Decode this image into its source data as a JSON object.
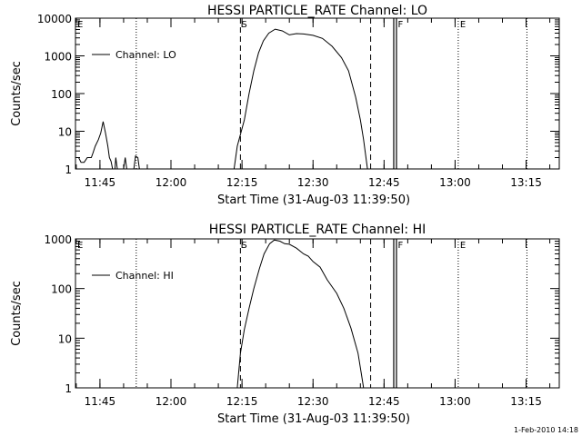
{
  "footer_timestamp": "1-Feb-2010 14:18",
  "chart_data": [
    {
      "type": "line",
      "title": "HESSI PARTICLE_RATE Channel: LO",
      "ylabel": "Counts/sec",
      "xlabel": "Start Time (31-Aug-03 11:39:50)",
      "yscale": "log",
      "ylim": [
        1,
        10000
      ],
      "yticks": [
        "1",
        "10",
        "100",
        "1000",
        "10000"
      ],
      "xlim": [
        "11:39:50",
        "13:22:00"
      ],
      "xticks": [
        "11:45",
        "12:00",
        "12:15",
        "12:30",
        "12:45",
        "13:00",
        "13:15"
      ],
      "legend": {
        "position": "top-left",
        "entries": [
          "Channel: LO"
        ]
      },
      "series": [
        {
          "name": "Channel: LO",
          "points": [
            [
              "11:39:50",
              2
            ],
            [
              "11:40:30",
              2
            ],
            [
              "11:41:00",
              1.5
            ],
            [
              "11:41:40",
              1.5
            ],
            [
              "11:42:20",
              2
            ],
            [
              "11:43:10",
              2
            ],
            [
              "11:43:30",
              2.6
            ],
            [
              "11:44:00",
              4
            ],
            [
              "11:44:40",
              6
            ],
            [
              "11:45:10",
              9
            ],
            [
              "11:45:40",
              18
            ],
            [
              "11:46:10",
              9
            ],
            [
              "11:46:40",
              4
            ],
            [
              "11:47:00",
              2
            ],
            [
              "11:47:20",
              1.6
            ],
            [
              "11:47:40",
              1
            ],
            [
              "11:48:10",
              1
            ],
            [
              "11:48:20",
              2
            ],
            [
              "11:48:40",
              1
            ],
            [
              "11:50:00",
              1
            ],
            [
              "11:50:20",
              2
            ],
            [
              "11:50:40",
              1
            ],
            [
              "11:52:10",
              1
            ],
            [
              "11:52:30",
              2.2
            ],
            [
              "11:53:00",
              2
            ],
            [
              "11:53:20",
              1
            ]
          ]
        },
        {
          "name": "Channel: LO",
          "points": [
            [
              "12:13:20",
              1
            ],
            [
              "12:14:00",
              4
            ],
            [
              "12:15:30",
              20
            ],
            [
              "12:16:30",
              100
            ],
            [
              "12:17:30",
              400
            ],
            [
              "12:18:30",
              1200
            ],
            [
              "12:19:30",
              2500
            ],
            [
              "12:20:40",
              4000
            ],
            [
              "12:22:00",
              5100
            ],
            [
              "12:23:30",
              4600
            ],
            [
              "12:25:00",
              3600
            ],
            [
              "12:26:30",
              3900
            ],
            [
              "12:28:00",
              3800
            ],
            [
              "12:30:00",
              3500
            ],
            [
              "12:32:00",
              2900
            ],
            [
              "12:34:00",
              1800
            ],
            [
              "12:36:00",
              900
            ],
            [
              "12:37:30",
              400
            ],
            [
              "12:39:00",
              80
            ],
            [
              "12:40:00",
              20
            ],
            [
              "12:40:40",
              6
            ],
            [
              "12:41:30",
              1
            ]
          ]
        }
      ],
      "markers": {
        "dashed": [
          {
            "time": "12:14:40",
            "label": "S"
          },
          {
            "time": "12:42:10",
            "label": ""
          }
        ],
        "dotted": [
          {
            "time": "11:39:50",
            "label": "E"
          },
          {
            "time": "11:52:40",
            "label": ""
          },
          {
            "time": "13:00:40",
            "label": "E"
          },
          {
            "time": "13:15:10",
            "label": ""
          }
        ],
        "solid_double": [
          {
            "time": "12:47:20",
            "label": "F"
          }
        ]
      }
    },
    {
      "type": "line",
      "title": "HESSI PARTICLE_RATE Channel: HI",
      "ylabel": "Counts/sec",
      "xlabel": "Start Time (31-Aug-03 11:39:50)",
      "yscale": "log",
      "ylim": [
        1,
        1000
      ],
      "yticks": [
        "1",
        "10",
        "100",
        "1000"
      ],
      "xlim": [
        "11:39:50",
        "13:22:00"
      ],
      "xticks": [
        "11:45",
        "12:00",
        "12:15",
        "12:30",
        "12:45",
        "13:00",
        "13:15"
      ],
      "legend": {
        "position": "top-left",
        "entries": [
          "Channel: HI"
        ]
      },
      "series": [
        {
          "name": "Channel: HI",
          "points": [
            [
              "12:14:00",
              1
            ],
            [
              "12:14:40",
              5
            ],
            [
              "12:15:30",
              15
            ],
            [
              "12:16:30",
              40
            ],
            [
              "12:17:30",
              100
            ],
            [
              "12:18:40",
              250
            ],
            [
              "12:19:40",
              500
            ],
            [
              "12:20:50",
              800
            ],
            [
              "12:21:50",
              950
            ],
            [
              "12:23:00",
              900
            ],
            [
              "12:24:00",
              800
            ],
            [
              "12:25:00",
              780
            ],
            [
              "12:26:30",
              650
            ],
            [
              "12:28:00",
              500
            ],
            [
              "12:29:00",
              450
            ],
            [
              "12:30:00",
              350
            ],
            [
              "12:31:30",
              270
            ],
            [
              "12:33:00",
              150
            ],
            [
              "12:35:00",
              80
            ],
            [
              "12:36:30",
              40
            ],
            [
              "12:38:00",
              16
            ],
            [
              "12:39:30",
              5
            ],
            [
              "12:40:10",
              2
            ],
            [
              "12:40:40",
              1
            ]
          ]
        }
      ],
      "markers": {
        "dashed": [
          {
            "time": "12:14:40",
            "label": "S"
          },
          {
            "time": "12:42:10",
            "label": ""
          }
        ],
        "dotted": [
          {
            "time": "11:39:50",
            "label": "E"
          },
          {
            "time": "11:52:40",
            "label": ""
          },
          {
            "time": "13:00:40",
            "label": "E"
          },
          {
            "time": "13:15:10",
            "label": ""
          }
        ],
        "solid_double": [
          {
            "time": "12:47:20",
            "label": "F"
          }
        ]
      }
    }
  ]
}
